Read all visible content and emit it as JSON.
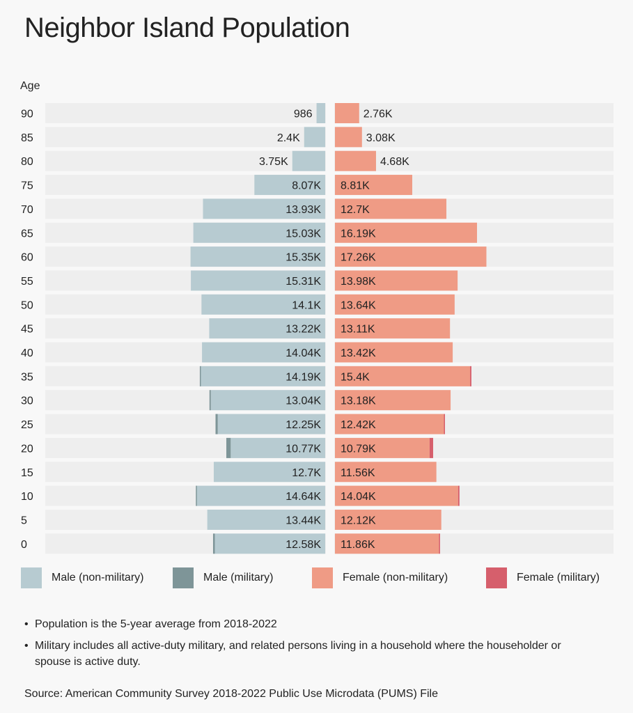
{
  "title": "Neighbor Island Population",
  "chart_data": {
    "type": "bar",
    "orientation": "horizontal-pyramid",
    "title": "Neighbor Island Population",
    "ylabel": "Age",
    "categories": [
      "90",
      "85",
      "80",
      "75",
      "70",
      "65",
      "60",
      "55",
      "50",
      "45",
      "40",
      "35",
      "30",
      "25",
      "20",
      "15",
      "10",
      "5",
      "0"
    ],
    "units": "thousands",
    "series": [
      {
        "name": "Male (non-military)",
        "color": "#b7cbd1",
        "side": "left",
        "values": [
          0.986,
          2.4,
          3.75,
          8.07,
          13.93,
          15.03,
          15.35,
          15.31,
          14.1,
          13.22,
          14.04,
          14.19,
          13.04,
          12.25,
          10.77,
          12.7,
          14.64,
          13.44,
          12.58
        ]
      },
      {
        "name": "Male (military)",
        "color": "#7e9598",
        "side": "left",
        "values": [
          0,
          0,
          0,
          0,
          0,
          0,
          0,
          0,
          0,
          0,
          0,
          0.1,
          0.15,
          0.25,
          0.5,
          0,
          0.1,
          0,
          0.2
        ]
      },
      {
        "name": "Female (non-military)",
        "color": "#ef9b85",
        "side": "right",
        "values": [
          2.76,
          3.08,
          4.68,
          8.81,
          12.7,
          16.19,
          17.26,
          13.98,
          13.64,
          13.11,
          13.42,
          15.4,
          13.18,
          12.42,
          10.79,
          11.56,
          14.04,
          12.12,
          11.86
        ]
      },
      {
        "name": "Female (military)",
        "color": "#d65f6c",
        "side": "right",
        "values": [
          0,
          0,
          0,
          0,
          0,
          0,
          0,
          0,
          0,
          0,
          0,
          0.15,
          0,
          0.05,
          0.4,
          0,
          0.15,
          0,
          0.1
        ]
      }
    ],
    "male_labels": [
      "986",
      "2.4K",
      "3.75K",
      "8.07K",
      "13.93K",
      "15.03K",
      "15.35K",
      "15.31K",
      "14.1K",
      "13.22K",
      "14.04K",
      "14.19K",
      "13.04K",
      "12.25K",
      "10.77K",
      "12.7K",
      "14.64K",
      "13.44K",
      "12.58K"
    ],
    "female_labels": [
      "2.76K",
      "3.08K",
      "4.68K",
      "8.81K",
      "12.7K",
      "16.19K",
      "17.26K",
      "13.98K",
      "13.64K",
      "13.11K",
      "13.42K",
      "15.4K",
      "13.18K",
      "12.42K",
      "10.79K",
      "11.56K",
      "14.04K",
      "12.12K",
      "11.86K"
    ],
    "legend_position": "bottom",
    "grid": false
  },
  "legend": [
    "Male (non-military)",
    "Male (military)",
    "Female (non-military)",
    "Female (military)"
  ],
  "notes": [
    "Population is the 5-year average from 2018-2022",
    "Military includes all active-duty military, and related persons living in a household where the householder or spouse is active duty."
  ],
  "source": "Source: American Community Survey 2018-2022 Public Use Microdata (PUMS) File"
}
